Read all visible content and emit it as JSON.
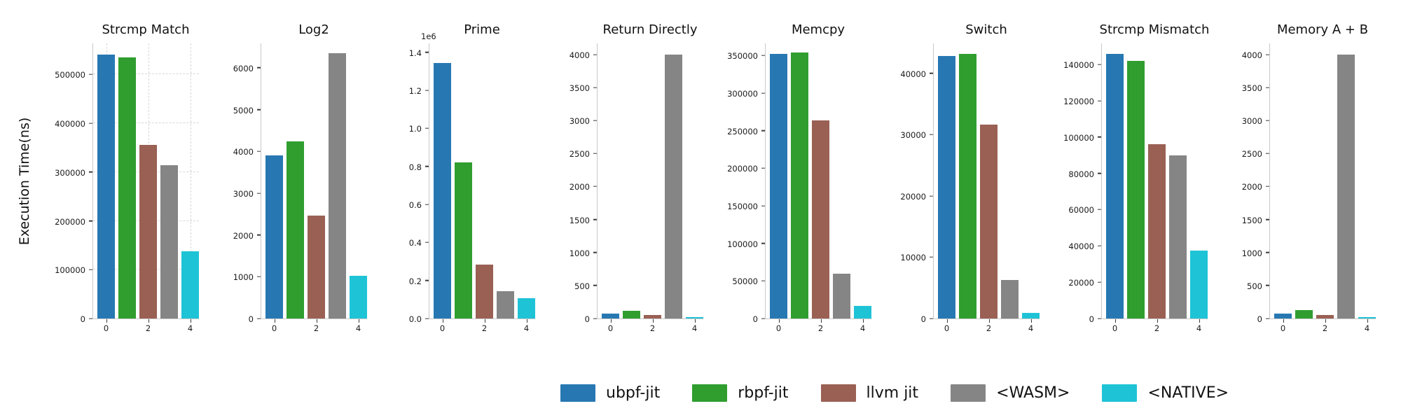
{
  "figure": {
    "ylabel": "Execution Time(ns)",
    "background": "#ffffff"
  },
  "legend": {
    "items": [
      {
        "label": "ubpf-jit",
        "color": "#2778b2"
      },
      {
        "label": "rbpf-jit",
        "color": "#2f9e2f"
      },
      {
        "label": "llvm jit",
        "color": "#9a6054"
      },
      {
        "label": "<WASM>",
        "color": "#858585"
      },
      {
        "label": "<NATIVE>",
        "color": "#1fc3d6"
      }
    ]
  },
  "chart_data": [
    {
      "type": "bar",
      "title": "Strcmp Match",
      "grid": true,
      "ylim": [
        0,
        565000
      ],
      "yticks": {
        "values": [
          0,
          100000,
          200000,
          300000,
          400000,
          500000
        ],
        "labels": [
          "0",
          "100000",
          "200000",
          "300000",
          "400000",
          "500000"
        ]
      },
      "xticks": [
        "0",
        "2",
        "4"
      ],
      "series": [
        {
          "name": "ubpf-jit",
          "value": 540000
        },
        {
          "name": "rbpf-jit",
          "value": 535000
        },
        {
          "name": "llvm jit",
          "value": 355000
        },
        {
          "name": "<WASM>",
          "value": 314000
        },
        {
          "name": "<NATIVE>",
          "value": 137000
        }
      ]
    },
    {
      "type": "bar",
      "title": "Log2",
      "grid": false,
      "ylim": [
        0,
        6600
      ],
      "yticks": {
        "values": [
          0,
          1000,
          2000,
          3000,
          4000,
          5000,
          6000
        ],
        "labels": [
          "0",
          "1000",
          "2000",
          "3000",
          "4000",
          "5000",
          "6000"
        ]
      },
      "xticks": [
        "0",
        "2",
        "4"
      ],
      "series": [
        {
          "name": "ubpf-jit",
          "value": 3900
        },
        {
          "name": "rbpf-jit",
          "value": 4230
        },
        {
          "name": "llvm jit",
          "value": 2460
        },
        {
          "name": "<WASM>",
          "value": 6350
        },
        {
          "name": "<NATIVE>",
          "value": 1020
        }
      ]
    },
    {
      "type": "bar",
      "title": "Prime",
      "grid": false,
      "offset_label": "1e6",
      "ylim": [
        0,
        1450000
      ],
      "yticks": {
        "values": [
          0,
          200000,
          400000,
          600000,
          800000,
          1000000,
          1200000,
          1400000
        ],
        "labels": [
          "0.0",
          "0.2",
          "0.4",
          "0.6",
          "0.8",
          "1.0",
          "1.2",
          "1.4"
        ]
      },
      "xticks": [
        "0",
        "2",
        "4"
      ],
      "series": [
        {
          "name": "ubpf-jit",
          "value": 1345000
        },
        {
          "name": "rbpf-jit",
          "value": 820000
        },
        {
          "name": "llvm jit",
          "value": 285000
        },
        {
          "name": "<WASM>",
          "value": 145000
        },
        {
          "name": "<NATIVE>",
          "value": 105000
        }
      ]
    },
    {
      "type": "bar",
      "title": "Return Directly",
      "grid": false,
      "ylim": [
        0,
        4180
      ],
      "yticks": {
        "values": [
          0,
          500,
          1000,
          1500,
          2000,
          2500,
          3000,
          3500,
          4000
        ],
        "labels": [
          "0",
          "500",
          "1000",
          "1500",
          "2000",
          "2500",
          "3000",
          "3500",
          "4000"
        ]
      },
      "xticks": [
        "0",
        "2",
        "4"
      ],
      "series": [
        {
          "name": "ubpf-jit",
          "value": 70
        },
        {
          "name": "rbpf-jit",
          "value": 120
        },
        {
          "name": "llvm jit",
          "value": 48
        },
        {
          "name": "<WASM>",
          "value": 4000
        },
        {
          "name": "<NATIVE>",
          "value": 25
        }
      ]
    },
    {
      "type": "bar",
      "title": "Memcpy",
      "grid": false,
      "ylim": [
        0,
        367000
      ],
      "yticks": {
        "values": [
          0,
          50000,
          100000,
          150000,
          200000,
          250000,
          300000,
          350000
        ],
        "labels": [
          "0",
          "50000",
          "100000",
          "150000",
          "200000",
          "250000",
          "300000",
          "350000"
        ]
      },
      "xticks": [
        "0",
        "2",
        "4"
      ],
      "series": [
        {
          "name": "ubpf-jit",
          "value": 352000
        },
        {
          "name": "rbpf-jit",
          "value": 354000
        },
        {
          "name": "llvm jit",
          "value": 264000
        },
        {
          "name": "<WASM>",
          "value": 60000
        },
        {
          "name": "<NATIVE>",
          "value": 17000
        }
      ]
    },
    {
      "type": "bar",
      "title": "Switch",
      "grid": false,
      "ylim": [
        0,
        45000
      ],
      "yticks": {
        "values": [
          0,
          10000,
          20000,
          30000,
          40000
        ],
        "labels": [
          "0",
          "10000",
          "20000",
          "30000",
          "40000"
        ]
      },
      "xticks": [
        "0",
        "2",
        "4"
      ],
      "series": [
        {
          "name": "ubpf-jit",
          "value": 42800
        },
        {
          "name": "rbpf-jit",
          "value": 43200
        },
        {
          "name": "llvm jit",
          "value": 31600
        },
        {
          "name": "<WASM>",
          "value": 6300
        },
        {
          "name": "<NATIVE>",
          "value": 950
        }
      ]
    },
    {
      "type": "bar",
      "title": "Strcmp Mismatch",
      "grid": false,
      "ylim": [
        0,
        152000
      ],
      "yticks": {
        "values": [
          0,
          20000,
          40000,
          60000,
          80000,
          100000,
          120000,
          140000
        ],
        "labels": [
          "0",
          "20000",
          "40000",
          "60000",
          "80000",
          "100000",
          "120000",
          "140000"
        ]
      },
      "xticks": [
        "0",
        "2",
        "4"
      ],
      "series": [
        {
          "name": "ubpf-jit",
          "value": 146000
        },
        {
          "name": "rbpf-jit",
          "value": 142000
        },
        {
          "name": "llvm jit",
          "value": 96000
        },
        {
          "name": "<WASM>",
          "value": 90000
        },
        {
          "name": "<NATIVE>",
          "value": 37500
        }
      ]
    },
    {
      "type": "bar",
      "title": "Memory A + B",
      "grid": false,
      "ylim": [
        0,
        4180
      ],
      "yticks": {
        "values": [
          0,
          500,
          1000,
          1500,
          2000,
          2500,
          3000,
          3500,
          4000
        ],
        "labels": [
          "0",
          "500",
          "1000",
          "1500",
          "2000",
          "2500",
          "3000",
          "3500",
          "4000"
        ]
      },
      "xticks": [
        "0",
        "2",
        "4"
      ],
      "series": [
        {
          "name": "ubpf-jit",
          "value": 70
        },
        {
          "name": "rbpf-jit",
          "value": 130
        },
        {
          "name": "llvm jit",
          "value": 55
        },
        {
          "name": "<WASM>",
          "value": 4000
        },
        {
          "name": "<NATIVE>",
          "value": 25
        }
      ]
    }
  ]
}
